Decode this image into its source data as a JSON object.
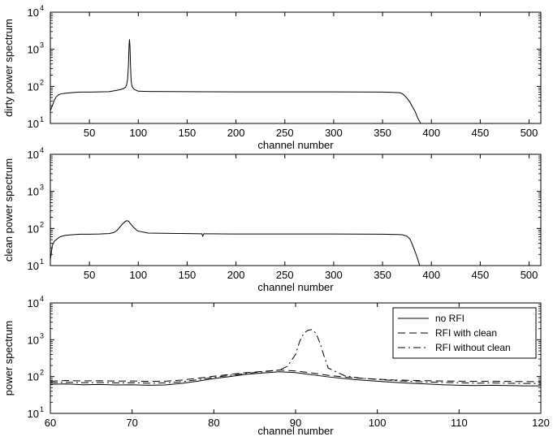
{
  "chart_data": [
    {
      "type": "line",
      "ylabel": "dirty power spectrum",
      "xlabel": "channel number",
      "xlim": [
        10,
        512
      ],
      "ylim": [
        10,
        10000
      ],
      "yscale": "log",
      "grid": false,
      "xticks": [
        50,
        100,
        150,
        200,
        250,
        300,
        350,
        400,
        450,
        500
      ],
      "xtick_labels": [
        "50",
        "100",
        "150",
        "200",
        "250",
        "300",
        "350",
        "400",
        "450",
        "500"
      ],
      "yticks": [
        10,
        100,
        1000,
        10000
      ],
      "ytick_labels": [
        {
          "base": "10",
          "exp": "1"
        },
        {
          "base": "10",
          "exp": "2"
        },
        {
          "base": "10",
          "exp": "3"
        },
        {
          "base": "10",
          "exp": "4"
        }
      ],
      "series": [
        {
          "style": "solid",
          "x": [
            10,
            12,
            14,
            16,
            18,
            20,
            25,
            30,
            40,
            50,
            60,
            70,
            78,
            82,
            85,
            87,
            88,
            89,
            90,
            90.5,
            91,
            91.5,
            92,
            92.5,
            93,
            94,
            96,
            100,
            110,
            150,
            200,
            250,
            300,
            350,
            360,
            365,
            368,
            370,
            372,
            375,
            378,
            380,
            383,
            386,
            389
          ],
          "y": [
            22,
            30,
            42,
            52,
            58,
            62,
            65,
            67,
            70,
            70,
            71,
            72,
            78,
            82,
            88,
            95,
            110,
            150,
            400,
            1200,
            1850,
            1200,
            400,
            180,
            120,
            95,
            82,
            74,
            73,
            72,
            71,
            71,
            71,
            70,
            69,
            68,
            67,
            64,
            58,
            48,
            38,
            30,
            22,
            14,
            10
          ]
        }
      ]
    },
    {
      "type": "line",
      "ylabel": "clean power spectrum",
      "xlabel": "channel number",
      "xlim": [
        10,
        512
      ],
      "ylim": [
        10,
        10000
      ],
      "yscale": "log",
      "grid": false,
      "xticks": [
        50,
        100,
        150,
        200,
        250,
        300,
        350,
        400,
        450,
        500
      ],
      "xtick_labels": [
        "50",
        "100",
        "150",
        "200",
        "250",
        "300",
        "350",
        "400",
        "450",
        "500"
      ],
      "yticks": [
        10,
        100,
        1000,
        10000
      ],
      "ytick_labels": [
        {
          "base": "10",
          "exp": "1"
        },
        {
          "base": "10",
          "exp": "2"
        },
        {
          "base": "10",
          "exp": "3"
        },
        {
          "base": "10",
          "exp": "4"
        }
      ],
      "series": [
        {
          "style": "solid",
          "x": [
            10,
            11,
            12,
            14,
            16,
            18,
            20,
            25,
            30,
            40,
            50,
            60,
            70,
            75,
            78,
            80,
            83,
            86,
            88,
            90,
            92,
            95,
            98,
            100,
            110,
            150,
            165,
            166,
            167,
            170,
            200,
            250,
            300,
            350,
            365,
            370,
            375,
            378,
            380,
            383,
            386,
            388
          ],
          "y": [
            14,
            22,
            35,
            45,
            50,
            55,
            60,
            65,
            67,
            70,
            70,
            71,
            73,
            78,
            88,
            100,
            125,
            150,
            162,
            158,
            135,
            108,
            92,
            85,
            75,
            73,
            72,
            62,
            72,
            72,
            71,
            71,
            71,
            70,
            69,
            68,
            62,
            52,
            40,
            25,
            15,
            10
          ]
        }
      ]
    },
    {
      "type": "line",
      "ylabel": "power spectrum",
      "xlabel": "channel number",
      "xlim": [
        60,
        120
      ],
      "ylim": [
        10,
        10000
      ],
      "yscale": "log",
      "grid": false,
      "legend_position": "top-right",
      "xticks": [
        60,
        70,
        80,
        90,
        100,
        110,
        120
      ],
      "xtick_labels": [
        "60",
        "70",
        "80",
        "90",
        "100",
        "110",
        "120"
      ],
      "yticks": [
        10,
        100,
        1000,
        10000
      ],
      "ytick_labels": [
        {
          "base": "10",
          "exp": "1"
        },
        {
          "base": "10",
          "exp": "2"
        },
        {
          "base": "10",
          "exp": "3"
        },
        {
          "base": "10",
          "exp": "4"
        }
      ],
      "series": [
        {
          "name": "no RFI",
          "style": "solid",
          "x": [
            60,
            62,
            64,
            66,
            68,
            70,
            72,
            74,
            76,
            78,
            80,
            82,
            84,
            86,
            88,
            90,
            92,
            94,
            96,
            98,
            100,
            102,
            104,
            106,
            108,
            110,
            112,
            114,
            116,
            118,
            120
          ],
          "y": [
            62,
            63,
            60,
            61,
            59,
            60,
            58,
            59,
            65,
            75,
            88,
            100,
            115,
            125,
            135,
            128,
            112,
            98,
            88,
            80,
            75,
            70,
            66,
            63,
            60,
            58,
            57,
            58,
            57,
            56,
            56
          ]
        },
        {
          "name": "RFI with clean",
          "style": "dashed",
          "x": [
            60,
            62,
            64,
            66,
            68,
            70,
            72,
            74,
            76,
            78,
            80,
            82,
            84,
            86,
            88,
            90,
            92,
            94,
            96,
            98,
            100,
            102,
            104,
            106,
            108,
            110,
            112,
            114,
            116,
            118,
            120
          ],
          "y": [
            75,
            78,
            76,
            77,
            75,
            76,
            74,
            75,
            80,
            90,
            102,
            115,
            128,
            138,
            150,
            142,
            125,
            108,
            97,
            90,
            85,
            81,
            79,
            77,
            76,
            75,
            74,
            75,
            74,
            73,
            73
          ]
        },
        {
          "name": "RFI without clean",
          "style": "dashdot",
          "x": [
            60,
            62,
            64,
            66,
            68,
            70,
            72,
            74,
            76,
            78,
            80,
            82,
            84,
            86,
            88,
            89,
            90,
            90.5,
            91,
            91.5,
            92,
            92.5,
            93,
            93.5,
            94,
            96,
            98,
            100,
            102,
            104,
            106,
            108,
            110,
            112,
            114,
            116,
            118,
            120
          ],
          "y": [
            68,
            70,
            68,
            69,
            67,
            68,
            66,
            67,
            72,
            82,
            95,
            108,
            122,
            135,
            150,
            190,
            400,
            900,
            1500,
            1800,
            1900,
            1500,
            800,
            350,
            170,
            105,
            90,
            84,
            78,
            74,
            71,
            69,
            68,
            66,
            67,
            66,
            65,
            65
          ]
        }
      ]
    }
  ]
}
